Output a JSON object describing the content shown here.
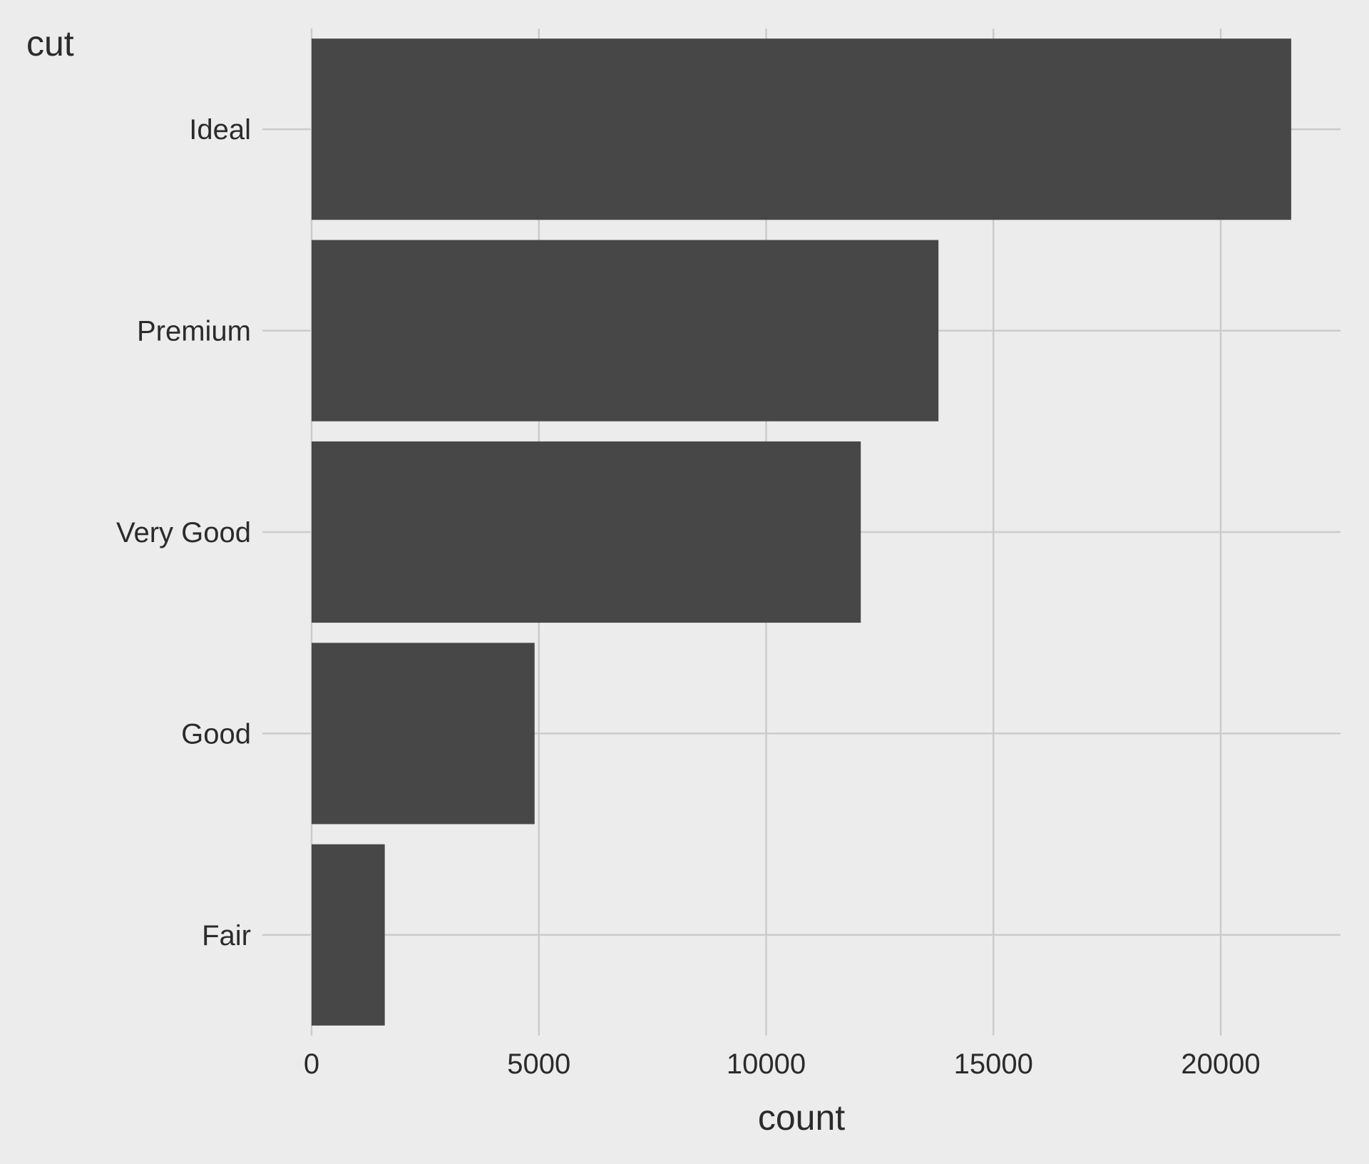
{
  "chart_data": {
    "type": "bar",
    "orientation": "horizontal",
    "categories": [
      "Ideal",
      "Premium",
      "Very Good",
      "Good",
      "Fair"
    ],
    "values": [
      21551,
      13791,
      12082,
      4906,
      1610
    ],
    "xlabel": "count",
    "ylabel": "cut",
    "x_ticks": [
      "0",
      "5000",
      "10000",
      "15000",
      "20000"
    ],
    "xlim": [
      0,
      22700
    ],
    "grid": true,
    "bar_color": "#474747",
    "background_color": "#ececec",
    "grid_color": "#cbcbcb"
  }
}
